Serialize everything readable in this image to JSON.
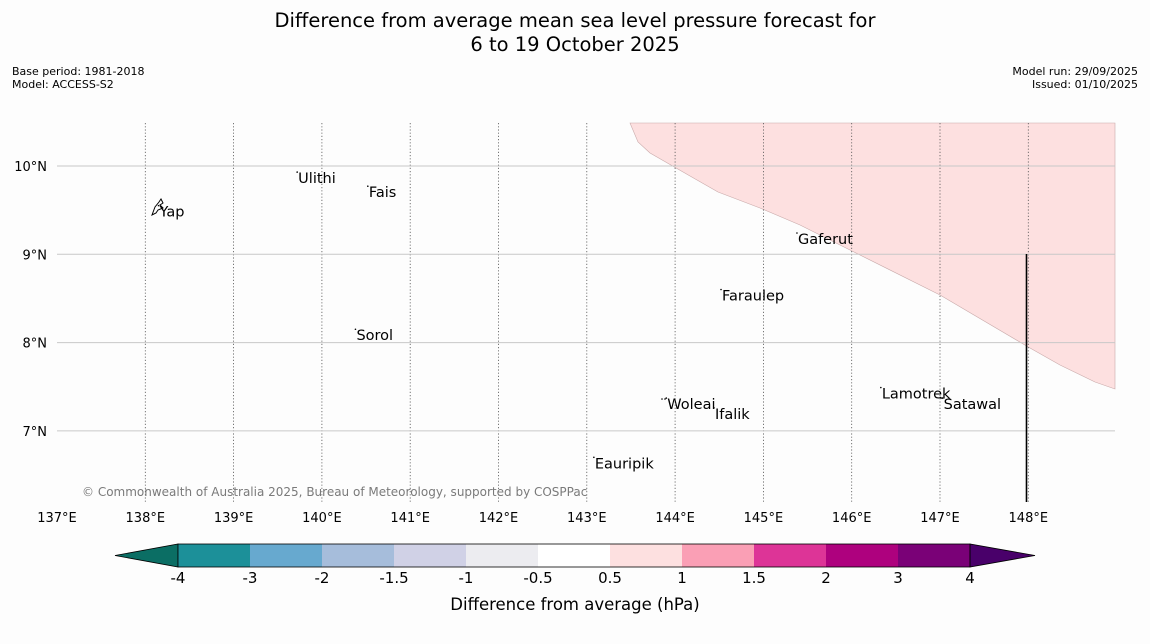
{
  "title_line1": "Difference from average mean sea level pressure forecast for",
  "title_line2": "6 to 19 October 2025",
  "meta_left": {
    "base_period": "Base period: 1981-2018",
    "model": "Model: ACCESS-S2"
  },
  "meta_right": {
    "model_run": "Model run: 29/09/2025",
    "issued": "Issued: 01/10/2025"
  },
  "map": {
    "lon_range": [
      137,
      149
    ],
    "lat_range": [
      6.2,
      10.5
    ],
    "lon_labels": [
      "137°E",
      "138°E",
      "139°E",
      "140°E",
      "141°E",
      "142°E",
      "143°E",
      "144°E",
      "145°E",
      "146°E",
      "147°E",
      "148°E"
    ],
    "lat_labels": [
      "10°N",
      "9°N",
      "8°N",
      "7°N"
    ],
    "places": [
      {
        "name": "Yap",
        "lon": 138.15,
        "lat": 9.54
      },
      {
        "name": "Ulithi",
        "lon": 139.72,
        "lat": 9.92
      },
      {
        "name": "Fais",
        "lon": 140.52,
        "lat": 9.76
      },
      {
        "name": "Gaferut",
        "lon": 145.38,
        "lat": 9.23
      },
      {
        "name": "Faraulep",
        "lon": 144.52,
        "lat": 8.59
      },
      {
        "name": "Sorol",
        "lon": 140.38,
        "lat": 8.14
      },
      {
        "name": "Woleai",
        "lon": 143.9,
        "lat": 7.36
      },
      {
        "name": "Ifalik",
        "lon": 144.44,
        "lat": 7.25
      },
      {
        "name": "Lamotrek",
        "lon": 146.33,
        "lat": 7.48
      },
      {
        "name": "Satawal",
        "lon": 147.03,
        "lat": 7.36
      },
      {
        "name": "Eauripik",
        "lon": 143.08,
        "lat": 6.69
      }
    ],
    "copyright": "© Commonwealth of Australia 2025, Bureau of Meteorology, supported by COSPPac",
    "positive_region_color": "#fde0e0"
  },
  "colorbar": {
    "label": "Difference from average (hPa)",
    "ticks": [
      "-4",
      "-3",
      "-2",
      "-1.5",
      "-1",
      "-0.5",
      "0.5",
      "1",
      "1.5",
      "2",
      "3",
      "4"
    ],
    "colors": [
      "#0b6e64",
      "#1c9099",
      "#67a9cf",
      "#a6bddb",
      "#d0d1e6",
      "#ececf0",
      "#ffffff",
      "#fde0e0",
      "#fa9fb5",
      "#dd3497",
      "#ae017e",
      "#7a0177",
      "#49006a"
    ]
  }
}
